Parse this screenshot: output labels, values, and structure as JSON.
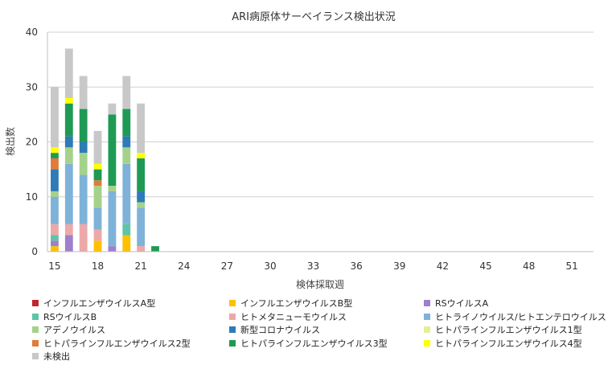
{
  "chart_data": {
    "type": "bar",
    "stacked": true,
    "title": "ARI病原体サーベイランス検出状況",
    "xlabel": "検体採取週",
    "ylabel": "検出数",
    "ylim": [
      0,
      40
    ],
    "yticks": [
      0,
      10,
      20,
      30,
      40
    ],
    "grid": true,
    "legend_position": "bottom",
    "categories": [
      15,
      16,
      17,
      18,
      19,
      20,
      21,
      22,
      23,
      24,
      25,
      26,
      27,
      28,
      29,
      30,
      31,
      32,
      33,
      34,
      35,
      36,
      37,
      38,
      39,
      40,
      41,
      42,
      43,
      44,
      45,
      46,
      47,
      48,
      49,
      50,
      51,
      52
    ],
    "x_tick_labels": [
      "15",
      "18",
      "21",
      "24",
      "27",
      "30",
      "33",
      "36",
      "39",
      "42",
      "45",
      "48",
      "51"
    ],
    "series": [
      {
        "name": "インフルエンザウイルスA型",
        "color": "#c0272d",
        "values": [
          0,
          0,
          0,
          0,
          0,
          0,
          0,
          0,
          0,
          0,
          0,
          0,
          0,
          0,
          0,
          0,
          0,
          0,
          0,
          0,
          0,
          0,
          0,
          0,
          0,
          0,
          0,
          0,
          0,
          0,
          0,
          0,
          0,
          0,
          0,
          0,
          0,
          0
        ]
      },
      {
        "name": "インフルエンザウイルスB型",
        "color": "#ffc000",
        "values": [
          1,
          0,
          0,
          2,
          0,
          3,
          0,
          0,
          0,
          0,
          0,
          0,
          0,
          0,
          0,
          0,
          0,
          0,
          0,
          0,
          0,
          0,
          0,
          0,
          0,
          0,
          0,
          0,
          0,
          0,
          0,
          0,
          0,
          0,
          0,
          0,
          0,
          0
        ]
      },
      {
        "name": "RSウイルスA",
        "color": "#9e80cc",
        "values": [
          1,
          3,
          0,
          0,
          1,
          0,
          0,
          0,
          0,
          0,
          0,
          0,
          0,
          0,
          0,
          0,
          0,
          0,
          0,
          0,
          0,
          0,
          0,
          0,
          0,
          0,
          0,
          0,
          0,
          0,
          0,
          0,
          0,
          0,
          0,
          0,
          0,
          0
        ]
      },
      {
        "name": "RSウイルスB",
        "color": "#5ec4a8",
        "values": [
          1,
          0,
          0,
          0,
          0,
          2,
          0,
          0,
          0,
          0,
          0,
          0,
          0,
          0,
          0,
          0,
          0,
          0,
          0,
          0,
          0,
          0,
          0,
          0,
          0,
          0,
          0,
          0,
          0,
          0,
          0,
          0,
          0,
          0,
          0,
          0,
          0,
          0
        ]
      },
      {
        "name": "ヒトメタニューモウイルス",
        "color": "#eda8a8",
        "values": [
          2,
          2,
          5,
          2,
          0,
          0,
          1,
          0,
          0,
          0,
          0,
          0,
          0,
          0,
          0,
          0,
          0,
          0,
          0,
          0,
          0,
          0,
          0,
          0,
          0,
          0,
          0,
          0,
          0,
          0,
          0,
          0,
          0,
          0,
          0,
          0,
          0,
          0
        ]
      },
      {
        "name": "ヒトライノウイルス/ヒトエンテロウイルス",
        "color": "#7fb2d9",
        "values": [
          5,
          11,
          9,
          4,
          10,
          11,
          7,
          0,
          0,
          0,
          0,
          0,
          0,
          0,
          0,
          0,
          0,
          0,
          0,
          0,
          0,
          0,
          0,
          0,
          0,
          0,
          0,
          0,
          0,
          0,
          0,
          0,
          0,
          0,
          0,
          0,
          0,
          0
        ]
      },
      {
        "name": "アデノウイルス",
        "color": "#a5d28a",
        "values": [
          1,
          3,
          4,
          4,
          1,
          3,
          1,
          0,
          0,
          0,
          0,
          0,
          0,
          0,
          0,
          0,
          0,
          0,
          0,
          0,
          0,
          0,
          0,
          0,
          0,
          0,
          0,
          0,
          0,
          0,
          0,
          0,
          0,
          0,
          0,
          0,
          0,
          0
        ]
      },
      {
        "name": "新型コロナウイルス",
        "color": "#2e7bb8",
        "values": [
          4,
          2,
          2,
          0,
          0,
          2,
          2,
          0,
          0,
          0,
          0,
          0,
          0,
          0,
          0,
          0,
          0,
          0,
          0,
          0,
          0,
          0,
          0,
          0,
          0,
          0,
          0,
          0,
          0,
          0,
          0,
          0,
          0,
          0,
          0,
          0,
          0,
          0
        ]
      },
      {
        "name": "ヒトパラインフルエンザウイルス1型",
        "color": "#e6ee9c",
        "values": [
          0,
          0,
          0,
          0,
          0,
          0,
          0,
          0,
          0,
          0,
          0,
          0,
          0,
          0,
          0,
          0,
          0,
          0,
          0,
          0,
          0,
          0,
          0,
          0,
          0,
          0,
          0,
          0,
          0,
          0,
          0,
          0,
          0,
          0,
          0,
          0,
          0,
          0
        ]
      },
      {
        "name": "ヒトパラインフルエンザウイルス2型",
        "color": "#e07b39",
        "values": [
          2,
          0,
          0,
          1,
          0,
          0,
          0,
          0,
          0,
          0,
          0,
          0,
          0,
          0,
          0,
          0,
          0,
          0,
          0,
          0,
          0,
          0,
          0,
          0,
          0,
          0,
          0,
          0,
          0,
          0,
          0,
          0,
          0,
          0,
          0,
          0,
          0,
          0
        ]
      },
      {
        "name": "ヒトパラインフルエンザウイルス3型",
        "color": "#1f9a55",
        "values": [
          1,
          6,
          6,
          2,
          13,
          5,
          6,
          1,
          0,
          0,
          0,
          0,
          0,
          0,
          0,
          0,
          0,
          0,
          0,
          0,
          0,
          0,
          0,
          0,
          0,
          0,
          0,
          0,
          0,
          0,
          0,
          0,
          0,
          0,
          0,
          0,
          0,
          0
        ]
      },
      {
        "name": "ヒトパラインフルエンザウイルス4型",
        "color": "#ffff00",
        "values": [
          1,
          1,
          0,
          1,
          0,
          0,
          1,
          0,
          0,
          0,
          0,
          0,
          0,
          0,
          0,
          0,
          0,
          0,
          0,
          0,
          0,
          0,
          0,
          0,
          0,
          0,
          0,
          0,
          0,
          0,
          0,
          0,
          0,
          0,
          0,
          0,
          0,
          0
        ]
      },
      {
        "name": "未検出",
        "color": "#c8c8c8",
        "values": [
          11,
          9,
          6,
          6,
          2,
          6,
          9,
          0,
          0,
          0,
          0,
          0,
          0,
          0,
          0,
          0,
          0,
          0,
          0,
          0,
          0,
          0,
          0,
          0,
          0,
          0,
          0,
          0,
          0,
          0,
          0,
          0,
          0,
          0,
          0,
          0,
          0,
          0
        ]
      }
    ]
  }
}
